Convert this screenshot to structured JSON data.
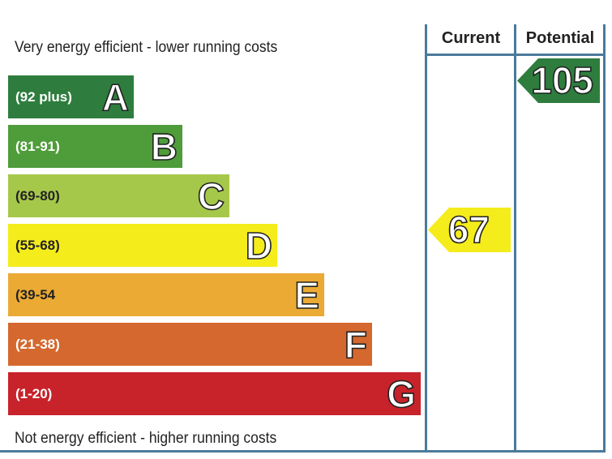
{
  "chart_data": {
    "type": "bar",
    "top_caption": "Very energy efficient - lower running costs",
    "bottom_caption": "Not energy efficient - higher running costs",
    "columns": [
      "Current",
      "Potential"
    ],
    "bands": [
      {
        "letter": "A",
        "range": "(92 plus)",
        "min": 92,
        "max": 120,
        "color": "#2e7d3e"
      },
      {
        "letter": "B",
        "range": "(81-91)",
        "min": 81,
        "max": 91,
        "color": "#4e9c3a"
      },
      {
        "letter": "C",
        "range": "(69-80)",
        "min": 69,
        "max": 80,
        "color": "#a6c84a"
      },
      {
        "letter": "D",
        "range": "(55-68)",
        "min": 55,
        "max": 68,
        "color": "#f5ec1b"
      },
      {
        "letter": "E",
        "range": "(39-54",
        "min": 39,
        "max": 54,
        "color": "#ebaa34"
      },
      {
        "letter": "F",
        "range": "(21-38)",
        "min": 21,
        "max": 38,
        "color": "#d4682e"
      },
      {
        "letter": "G",
        "range": "(1-20)",
        "min": 1,
        "max": 20,
        "color": "#c8222a"
      }
    ],
    "ratings": [
      {
        "column": "Current",
        "value": 67,
        "band": "D",
        "color": "#f5ec1b"
      },
      {
        "column": "Potential",
        "value": 105,
        "band": "A",
        "color": "#2e7d3e"
      }
    ]
  }
}
